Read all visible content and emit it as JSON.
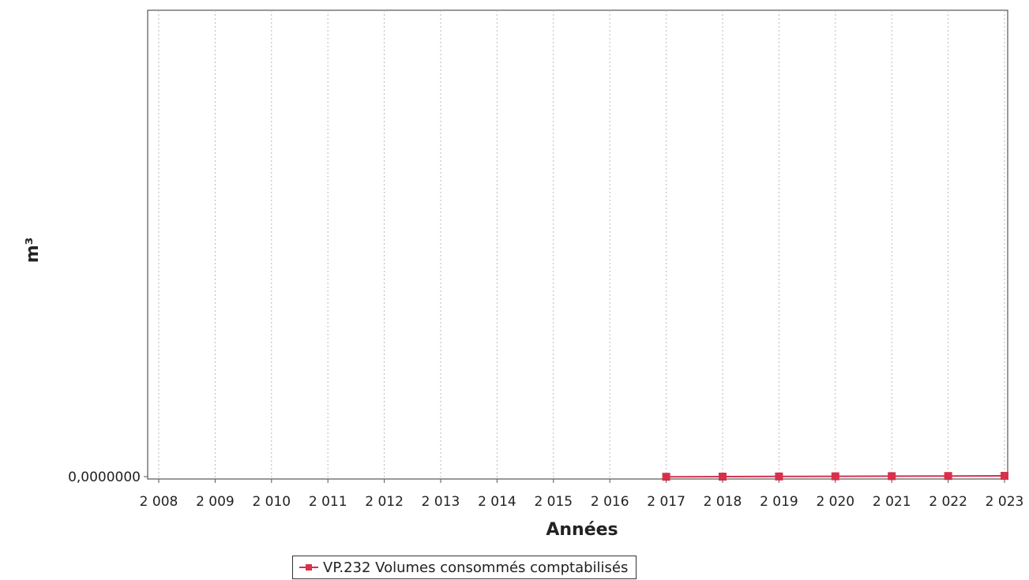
{
  "chart_data": {
    "type": "line",
    "categories": [
      "2 008",
      "2 009",
      "2 010",
      "2 011",
      "2 012",
      "2 013",
      "2 014",
      "2 015",
      "2 016",
      "2 017",
      "2 018",
      "2 019",
      "2 020",
      "2 021",
      "2 022",
      "2 023"
    ],
    "series": [
      {
        "name": "VP.232 Volumes consommés comptabilisés",
        "color": "#d9304a",
        "values": [
          null,
          null,
          null,
          null,
          null,
          null,
          null,
          null,
          null,
          0,
          0,
          0,
          0,
          0,
          0,
          0
        ]
      }
    ],
    "xlabel": "Années",
    "ylabel": "m³",
    "y_ticks": [
      "0,0000000"
    ],
    "grid": "vertical dashed",
    "legend": "bottom-center"
  }
}
